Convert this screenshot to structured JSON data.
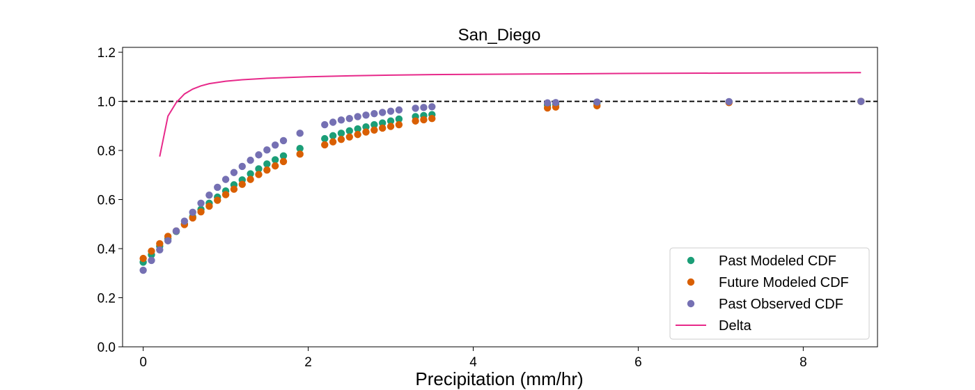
{
  "chart_data": {
    "type": "scatter",
    "title": "San_Diego",
    "xlabel": "Precipitation (mm/hr)",
    "ylabel": "",
    "xlim": [
      -0.25,
      8.9
    ],
    "ylim": [
      0.0,
      1.22
    ],
    "xticks": [
      0,
      2,
      4,
      6,
      8
    ],
    "yticks": [
      0.0,
      0.2,
      0.4,
      0.6,
      0.8,
      1.0,
      1.2
    ],
    "xtick_labels": [
      "0",
      "2",
      "4",
      "6",
      "8"
    ],
    "ytick_labels": [
      "0.0",
      "0.2",
      "0.4",
      "0.6",
      "0.8",
      "1.0",
      "1.2"
    ],
    "grid": false,
    "legend_position": "bottom-right",
    "reference_line": {
      "y": 1.0,
      "style": "dashed",
      "color": "#000000"
    },
    "series": [
      {
        "name": "Past Modeled CDF",
        "kind": "scatter",
        "color": "#1b9e77",
        "x": [
          0.0,
          0.1,
          0.2,
          0.3,
          0.4,
          0.5,
          0.6,
          0.7,
          0.8,
          0.9,
          1.0,
          1.1,
          1.2,
          1.3,
          1.4,
          1.5,
          1.6,
          1.7,
          1.9,
          2.2,
          2.3,
          2.4,
          2.5,
          2.6,
          2.7,
          2.8,
          2.9,
          3.0,
          3.1,
          3.3,
          3.4,
          3.5,
          4.9,
          5.0,
          5.5,
          7.1,
          8.7
        ],
        "y": [
          0.345,
          0.375,
          0.41,
          0.44,
          0.47,
          0.5,
          0.53,
          0.56,
          0.585,
          0.61,
          0.635,
          0.66,
          0.68,
          0.705,
          0.725,
          0.745,
          0.762,
          0.778,
          0.808,
          0.848,
          0.86,
          0.87,
          0.88,
          0.888,
          0.896,
          0.905,
          0.912,
          0.92,
          0.928,
          0.938,
          0.942,
          0.946,
          0.985,
          0.988,
          0.992,
          0.998,
          1.0
        ]
      },
      {
        "name": "Future Modeled CDF",
        "kind": "scatter",
        "color": "#d95f02",
        "x": [
          0.0,
          0.1,
          0.2,
          0.3,
          0.4,
          0.5,
          0.6,
          0.7,
          0.8,
          0.9,
          1.0,
          1.1,
          1.2,
          1.3,
          1.4,
          1.5,
          1.6,
          1.7,
          1.9,
          2.2,
          2.3,
          2.4,
          2.5,
          2.6,
          2.7,
          2.8,
          2.9,
          3.0,
          3.1,
          3.3,
          3.4,
          3.5,
          4.9,
          5.0,
          5.5,
          7.1,
          8.7
        ],
        "y": [
          0.36,
          0.39,
          0.42,
          0.45,
          0.472,
          0.498,
          0.525,
          0.55,
          0.573,
          0.597,
          0.62,
          0.642,
          0.662,
          0.682,
          0.702,
          0.72,
          0.737,
          0.755,
          0.785,
          0.823,
          0.835,
          0.845,
          0.855,
          0.865,
          0.875,
          0.883,
          0.891,
          0.898,
          0.905,
          0.92,
          0.925,
          0.93,
          0.973,
          0.977,
          0.982,
          0.995,
          1.0
        ]
      },
      {
        "name": "Past Observed CDF",
        "kind": "scatter",
        "color": "#7570b3",
        "x": [
          0.0,
          0.1,
          0.2,
          0.3,
          0.4,
          0.5,
          0.6,
          0.7,
          0.8,
          0.9,
          1.0,
          1.1,
          1.2,
          1.3,
          1.4,
          1.5,
          1.6,
          1.7,
          1.9,
          2.2,
          2.3,
          2.4,
          2.5,
          2.6,
          2.7,
          2.8,
          2.9,
          3.0,
          3.1,
          3.3,
          3.4,
          3.5,
          4.9,
          5.0,
          5.5,
          7.1,
          8.7
        ],
        "y": [
          0.312,
          0.352,
          0.395,
          0.432,
          0.472,
          0.512,
          0.548,
          0.585,
          0.618,
          0.65,
          0.682,
          0.71,
          0.735,
          0.76,
          0.782,
          0.802,
          0.822,
          0.84,
          0.87,
          0.905,
          0.915,
          0.924,
          0.93,
          0.938,
          0.944,
          0.95,
          0.955,
          0.96,
          0.965,
          0.972,
          0.975,
          0.978,
          0.994,
          0.995,
          0.997,
          0.999,
          1.0
        ]
      },
      {
        "name": "Delta",
        "kind": "line",
        "color": "#e7298a",
        "x": [
          0.2,
          0.3,
          0.4,
          0.5,
          0.6,
          0.7,
          0.8,
          1.0,
          1.2,
          1.5,
          2.0,
          2.5,
          3.0,
          3.5,
          4.0,
          5.0,
          6.0,
          7.0,
          8.0,
          8.7
        ],
        "y": [
          0.775,
          0.94,
          0.995,
          1.03,
          1.05,
          1.063,
          1.072,
          1.082,
          1.088,
          1.094,
          1.1,
          1.104,
          1.107,
          1.109,
          1.11,
          1.112,
          1.114,
          1.115,
          1.116,
          1.117
        ]
      }
    ]
  }
}
